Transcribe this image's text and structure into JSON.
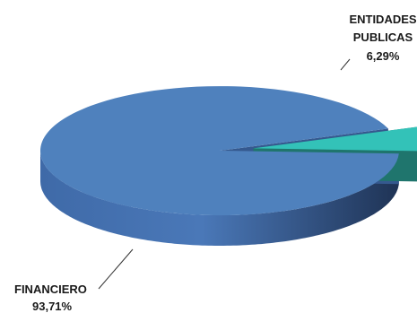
{
  "chart_data": {
    "type": "pie",
    "style": "3d-exploded",
    "slices": [
      {
        "name": "FINANCIERO",
        "label": "FINANCIERO",
        "value_label": "93,71%",
        "value": 93.71,
        "color": "#4f81bd",
        "exploded": false
      },
      {
        "name": "ENTIDADES PUBLICAS",
        "label_lines": [
          "ENTIDADES",
          "PUBLICAS"
        ],
        "value_label": "6,29%",
        "value": 6.29,
        "color": "#33c2b8",
        "exploded": true
      }
    ],
    "legend": "none"
  }
}
